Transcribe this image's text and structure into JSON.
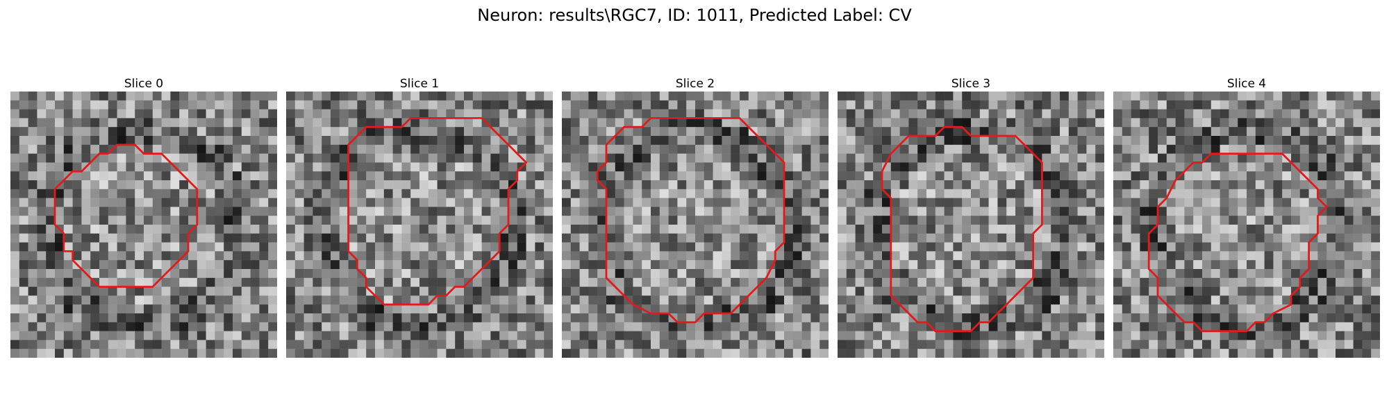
{
  "figure": {
    "title": "Neuron: results\\RGC7, ID: 1011, Predicted Label: CV"
  },
  "colors": {
    "contour": "#e31a1c"
  },
  "panels": [
    {
      "title": "Slice 0",
      "seed": 11,
      "contour": [
        [
          11,
          7
        ],
        [
          10,
          7
        ],
        [
          9,
          8
        ],
        [
          8,
          9
        ],
        [
          7,
          9
        ],
        [
          6,
          10
        ],
        [
          5,
          11
        ],
        [
          5,
          15
        ],
        [
          6,
          16
        ],
        [
          6,
          18
        ],
        [
          7,
          18
        ],
        [
          7,
          19
        ],
        [
          8,
          20
        ],
        [
          9,
          21
        ],
        [
          10,
          22
        ],
        [
          16,
          22
        ],
        [
          17,
          21
        ],
        [
          18,
          20
        ],
        [
          19,
          19
        ],
        [
          20,
          18
        ],
        [
          20,
          16
        ],
        [
          21,
          15
        ],
        [
          21,
          11
        ],
        [
          20,
          10
        ],
        [
          19,
          9
        ],
        [
          18,
          8
        ],
        [
          17,
          7
        ],
        [
          15,
          7
        ],
        [
          14,
          6
        ],
        [
          12,
          6
        ]
      ]
    },
    {
      "title": "Slice 1",
      "seed": 23,
      "contour": [
        [
          14,
          3
        ],
        [
          13,
          4
        ],
        [
          9,
          4
        ],
        [
          8,
          5
        ],
        [
          7,
          6
        ],
        [
          7,
          18
        ],
        [
          8,
          19
        ],
        [
          8,
          20
        ],
        [
          9,
          21
        ],
        [
          9,
          22
        ],
        [
          10,
          23
        ],
        [
          11,
          24
        ],
        [
          16,
          24
        ],
        [
          17,
          23
        ],
        [
          18,
          23
        ],
        [
          19,
          22
        ],
        [
          20,
          22
        ],
        [
          21,
          21
        ],
        [
          22,
          20
        ],
        [
          23,
          19
        ],
        [
          24,
          18
        ],
        [
          24,
          16
        ],
        [
          25,
          15
        ],
        [
          25,
          11
        ],
        [
          26,
          10
        ],
        [
          26,
          9
        ],
        [
          27,
          8
        ],
        [
          26,
          7
        ],
        [
          25,
          6
        ],
        [
          24,
          5
        ],
        [
          23,
          4
        ],
        [
          22,
          3
        ],
        [
          20,
          3
        ]
      ]
    },
    {
      "title": "Slice 2",
      "seed": 37,
      "contour": [
        [
          10,
          3
        ],
        [
          9,
          4
        ],
        [
          7,
          4
        ],
        [
          6,
          5
        ],
        [
          5,
          6
        ],
        [
          5,
          8
        ],
        [
          4,
          9
        ],
        [
          4,
          10
        ],
        [
          5,
          11
        ],
        [
          5,
          21
        ],
        [
          6,
          22
        ],
        [
          7,
          23
        ],
        [
          8,
          24
        ],
        [
          10,
          25
        ],
        [
          12,
          25
        ],
        [
          13,
          26
        ],
        [
          15,
          26
        ],
        [
          16,
          25
        ],
        [
          19,
          25
        ],
        [
          20,
          24
        ],
        [
          21,
          23
        ],
        [
          22,
          22
        ],
        [
          23,
          21
        ],
        [
          24,
          19
        ],
        [
          24,
          18
        ],
        [
          25,
          17
        ],
        [
          25,
          8
        ],
        [
          24,
          7
        ],
        [
          23,
          6
        ],
        [
          22,
          5
        ],
        [
          21,
          4
        ],
        [
          20,
          3
        ]
      ]
    },
    {
      "title": "Slice 3",
      "seed": 53,
      "contour": [
        [
          15,
          5
        ],
        [
          14,
          4
        ],
        [
          12,
          4
        ],
        [
          11,
          5
        ],
        [
          8,
          5
        ],
        [
          7,
          6
        ],
        [
          6,
          7
        ],
        [
          5,
          9
        ],
        [
          5,
          11
        ],
        [
          6,
          12
        ],
        [
          6,
          23
        ],
        [
          7,
          24
        ],
        [
          8,
          25
        ],
        [
          9,
          26
        ],
        [
          10,
          26
        ],
        [
          11,
          27
        ],
        [
          15,
          27
        ],
        [
          16,
          26
        ],
        [
          17,
          26
        ],
        [
          18,
          25
        ],
        [
          19,
          24
        ],
        [
          20,
          23
        ],
        [
          22,
          21
        ],
        [
          22,
          16
        ],
        [
          23,
          15
        ],
        [
          23,
          8
        ],
        [
          22,
          7
        ],
        [
          21,
          6
        ],
        [
          20,
          5
        ]
      ]
    },
    {
      "title": "Slice 4",
      "seed": 71,
      "contour": [
        [
          13,
          7
        ],
        [
          11,
          7
        ],
        [
          10,
          8
        ],
        [
          9,
          8
        ],
        [
          8,
          9
        ],
        [
          7,
          10
        ],
        [
          6,
          12
        ],
        [
          5,
          13
        ],
        [
          5,
          15
        ],
        [
          4,
          16
        ],
        [
          4,
          20
        ],
        [
          5,
          21
        ],
        [
          5,
          23
        ],
        [
          6,
          24
        ],
        [
          7,
          25
        ],
        [
          8,
          26
        ],
        [
          9,
          26
        ],
        [
          10,
          27
        ],
        [
          15,
          27
        ],
        [
          16,
          26
        ],
        [
          17,
          26
        ],
        [
          18,
          25
        ],
        [
          20,
          24
        ],
        [
          20,
          23
        ],
        [
          21,
          22
        ],
        [
          21,
          21
        ],
        [
          22,
          20
        ],
        [
          22,
          17
        ],
        [
          23,
          16
        ],
        [
          23,
          14
        ],
        [
          24,
          13
        ],
        [
          23,
          12
        ],
        [
          23,
          11
        ],
        [
          22,
          10
        ],
        [
          21,
          9
        ],
        [
          20,
          8
        ],
        [
          19,
          7
        ]
      ]
    }
  ]
}
